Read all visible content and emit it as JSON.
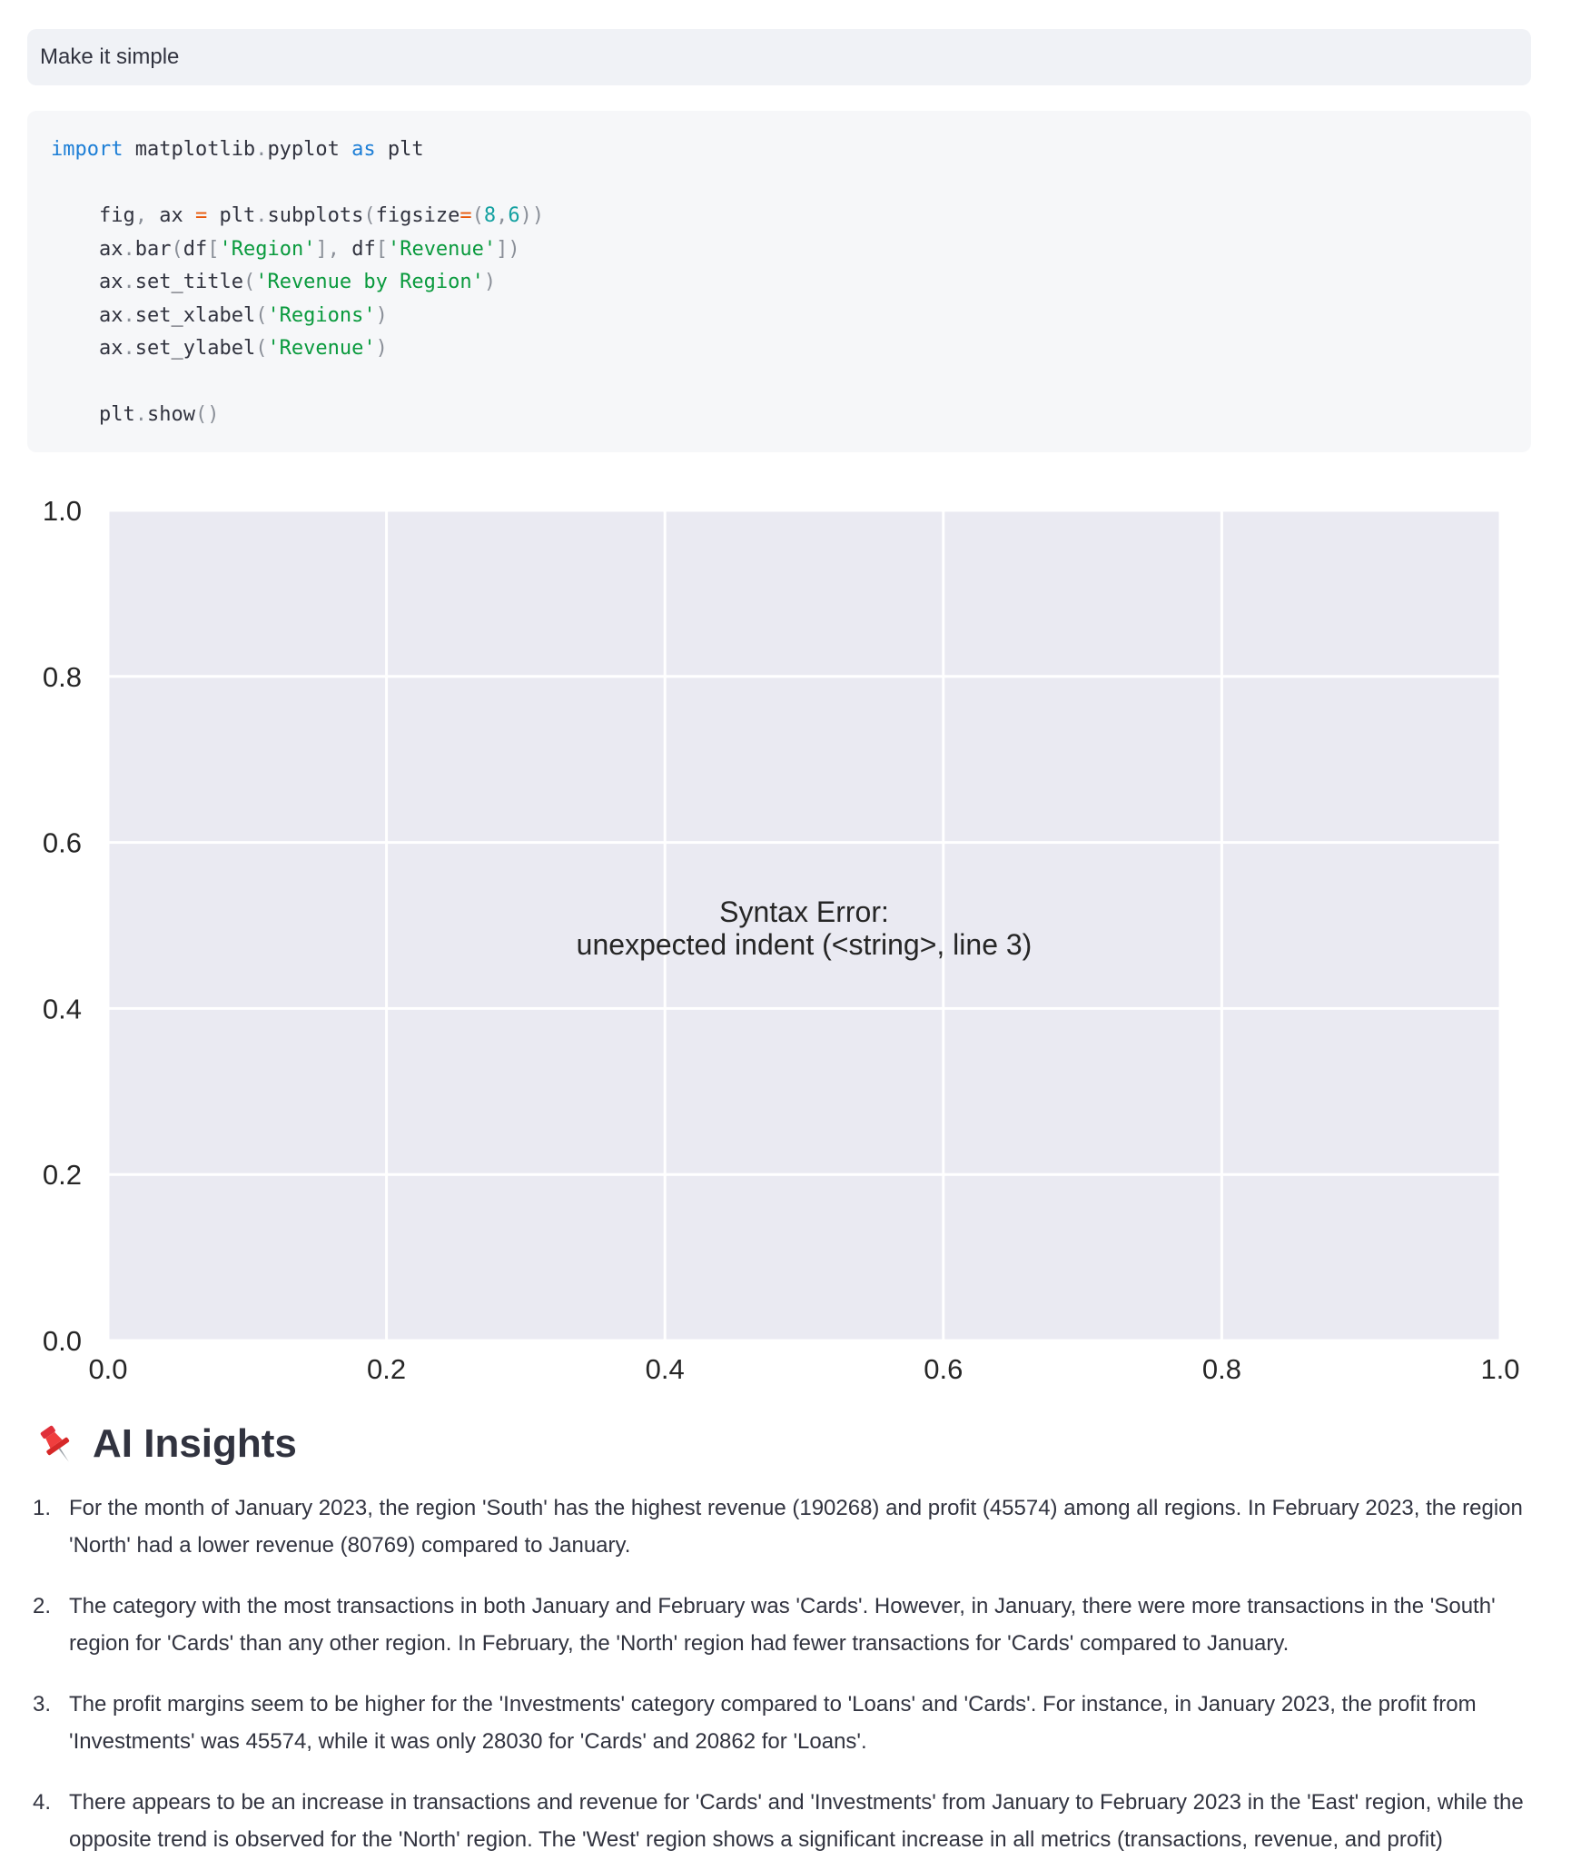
{
  "user_message": "Make it simple",
  "code": {
    "lines": [
      [
        {
          "t": "import",
          "c": "kw"
        },
        {
          "t": " matplotlib",
          "c": ""
        },
        {
          "t": ".",
          "c": "pun"
        },
        {
          "t": "pyplot ",
          "c": ""
        },
        {
          "t": "as",
          "c": "kw"
        },
        {
          "t": " plt",
          "c": ""
        }
      ],
      [],
      [
        {
          "t": "    fig",
          "c": ""
        },
        {
          "t": ", ",
          "c": "pun"
        },
        {
          "t": "ax ",
          "c": ""
        },
        {
          "t": "=",
          "c": "op"
        },
        {
          "t": " plt",
          "c": ""
        },
        {
          "t": ".",
          "c": "pun"
        },
        {
          "t": "subplots",
          "c": ""
        },
        {
          "t": "(",
          "c": "pun"
        },
        {
          "t": "figsize",
          "c": ""
        },
        {
          "t": "=",
          "c": "op"
        },
        {
          "t": "(",
          "c": "pun"
        },
        {
          "t": "8",
          "c": "num"
        },
        {
          "t": ",",
          "c": "pun"
        },
        {
          "t": "6",
          "c": "num"
        },
        {
          "t": "))",
          "c": "pun"
        }
      ],
      [
        {
          "t": "    ax",
          "c": ""
        },
        {
          "t": ".",
          "c": "pun"
        },
        {
          "t": "bar",
          "c": ""
        },
        {
          "t": "(",
          "c": "pun"
        },
        {
          "t": "df",
          "c": ""
        },
        {
          "t": "[",
          "c": "pun"
        },
        {
          "t": "'Region'",
          "c": "str"
        },
        {
          "t": "], ",
          "c": "pun"
        },
        {
          "t": "df",
          "c": ""
        },
        {
          "t": "[",
          "c": "pun"
        },
        {
          "t": "'Revenue'",
          "c": "str"
        },
        {
          "t": "])",
          "c": "pun"
        }
      ],
      [
        {
          "t": "    ax",
          "c": ""
        },
        {
          "t": ".",
          "c": "pun"
        },
        {
          "t": "set_title",
          "c": ""
        },
        {
          "t": "(",
          "c": "pun"
        },
        {
          "t": "'Revenue by Region'",
          "c": "str"
        },
        {
          "t": ")",
          "c": "pun"
        }
      ],
      [
        {
          "t": "    ax",
          "c": ""
        },
        {
          "t": ".",
          "c": "pun"
        },
        {
          "t": "set_xlabel",
          "c": ""
        },
        {
          "t": "(",
          "c": "pun"
        },
        {
          "t": "'Regions'",
          "c": "str"
        },
        {
          "t": ")",
          "c": "pun"
        }
      ],
      [
        {
          "t": "    ax",
          "c": ""
        },
        {
          "t": ".",
          "c": "pun"
        },
        {
          "t": "set_ylabel",
          "c": ""
        },
        {
          "t": "(",
          "c": "pun"
        },
        {
          "t": "'Revenue'",
          "c": "str"
        },
        {
          "t": ")",
          "c": "pun"
        }
      ],
      [],
      [
        {
          "t": "    plt",
          "c": ""
        },
        {
          "t": ".",
          "c": "pun"
        },
        {
          "t": "show",
          "c": ""
        },
        {
          "t": "()",
          "c": "pun"
        }
      ]
    ]
  },
  "chart_data": {
    "type": "scatter",
    "title": "",
    "xlabel": "",
    "ylabel": "",
    "xlim": [
      0.0,
      1.0
    ],
    "ylim": [
      0.0,
      1.0
    ],
    "x_ticks": [
      "0.0",
      "0.2",
      "0.4",
      "0.6",
      "0.8",
      "1.0"
    ],
    "y_ticks": [
      "0.0",
      "0.2",
      "0.4",
      "0.6",
      "0.8",
      "1.0"
    ],
    "grid": true,
    "series": [],
    "annotations": [
      {
        "line1": "Syntax Error:",
        "line2": "unexpected indent (<string>, line 3)",
        "x": 0.5,
        "y": 0.5
      }
    ],
    "colors": {
      "background": "#eaeaf2",
      "grid": "#ffffff",
      "text": "#262626"
    }
  },
  "insights": {
    "title": "AI Insights",
    "icon": "pushpin-icon",
    "items": [
      "For the month of January 2023, the region 'South' has the highest revenue (190268) and profit (45574) among all regions. In February 2023, the region 'North' had a lower revenue (80769) compared to January.",
      "The category with the most transactions in both January and February was 'Cards'. However, in January, there were more transactions in the 'South' region for 'Cards' than any other region. In February, the 'North' region had fewer transactions for 'Cards' compared to January.",
      "The profit margins seem to be higher for the 'Investments' category compared to 'Loans' and 'Cards'. For instance, in January 2023, the profit from 'Investments' was 45574, while it was only 28030 for 'Cards' and 20862 for 'Loans'.",
      "There appears to be an increase in transactions and revenue for 'Cards' and 'Investments' from January to February 2023 in the 'East' region, while the opposite trend is observed for the 'North' region. The 'West' region shows a significant increase in all metrics (transactions, revenue, and profit)"
    ]
  }
}
